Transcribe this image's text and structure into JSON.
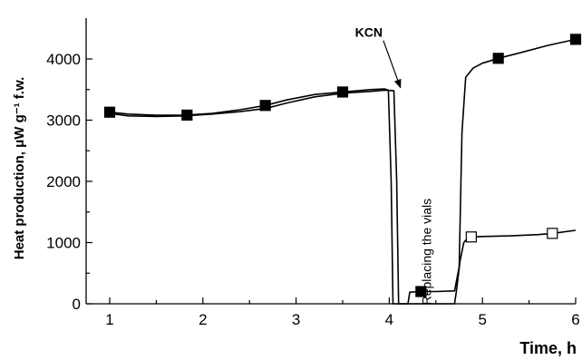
{
  "chart_data": {
    "type": "line",
    "title": "",
    "xlabel": "Time, h",
    "ylabel": "Heat production, μW g⁻¹ f.w.",
    "xlim": [
      0.8,
      6.0
    ],
    "ylim": [
      0,
      4500
    ],
    "x_ticks": [
      1,
      2,
      3,
      4,
      5,
      6
    ],
    "y_ticks": [
      0,
      1000,
      2000,
      3000,
      4000
    ],
    "grid": false,
    "legend": "none",
    "series": [
      {
        "marker": "filled-square",
        "points": [
          [
            1.0,
            3130
          ],
          [
            1.2,
            3100
          ],
          [
            1.5,
            3080
          ],
          [
            1.8,
            3080
          ],
          [
            2.1,
            3110
          ],
          [
            2.4,
            3170
          ],
          [
            2.67,
            3240
          ],
          [
            2.9,
            3330
          ],
          [
            3.2,
            3420
          ],
          [
            3.5,
            3460
          ],
          [
            3.8,
            3500
          ],
          [
            3.95,
            3510
          ],
          [
            3.99,
            3490
          ],
          [
            4.02,
            2000
          ],
          [
            4.04,
            0
          ],
          [
            4.2,
            0
          ],
          [
            4.22,
            190
          ],
          [
            4.34,
            200
          ],
          [
            4.5,
            200
          ],
          [
            4.7,
            210
          ],
          [
            4.75,
            600
          ],
          [
            4.78,
            2800
          ],
          [
            4.82,
            3700
          ],
          [
            4.9,
            3850
          ],
          [
            5.0,
            3930
          ],
          [
            5.17,
            4010
          ],
          [
            5.4,
            4100
          ],
          [
            5.7,
            4220
          ],
          [
            6.0,
            4320
          ]
        ],
        "marker_x": [
          1.0,
          1.83,
          2.67,
          3.5,
          4.34,
          5.17,
          6.0
        ]
      },
      {
        "marker": "open-square",
        "points": [
          [
            1.0,
            3110
          ],
          [
            1.2,
            3070
          ],
          [
            1.5,
            3060
          ],
          [
            1.8,
            3070
          ],
          [
            2.1,
            3100
          ],
          [
            2.4,
            3140
          ],
          [
            2.67,
            3190
          ],
          [
            2.9,
            3280
          ],
          [
            3.2,
            3380
          ],
          [
            3.5,
            3440
          ],
          [
            3.8,
            3470
          ],
          [
            3.95,
            3490
          ],
          [
            4.05,
            3480
          ],
          [
            4.08,
            2000
          ],
          [
            4.1,
            0
          ],
          [
            4.7,
            0
          ],
          [
            4.72,
            200
          ],
          [
            4.76,
            700
          ],
          [
            4.8,
            1000
          ],
          [
            4.85,
            1090
          ],
          [
            5.0,
            1100
          ],
          [
            5.3,
            1110
          ],
          [
            5.6,
            1130
          ],
          [
            5.75,
            1150
          ],
          [
            6.0,
            1200
          ]
        ],
        "marker_x": [
          4.88,
          5.75
        ]
      }
    ],
    "annotations": [
      {
        "text": "KCN",
        "arrow_from": [
          3.8,
          4420
        ],
        "arrow_to": [
          4.12,
          3530
        ]
      },
      {
        "text": "Replacing the vials",
        "x": 4.45,
        "y": 850,
        "rotation": -90
      }
    ]
  }
}
